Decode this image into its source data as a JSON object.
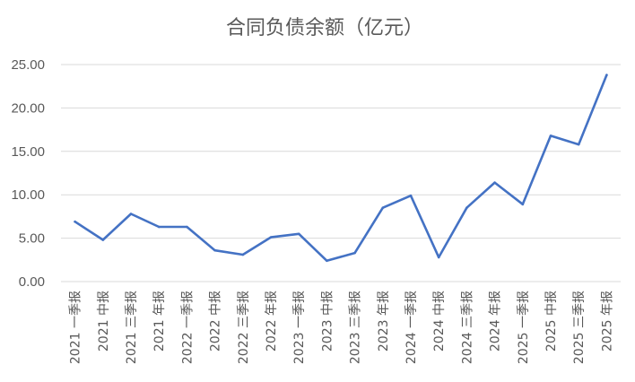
{
  "chart_data": {
    "type": "line",
    "title": "合同负债余额（亿元）",
    "xlabel": "",
    "ylabel": "",
    "categories": [
      "2021 一季报",
      "2021 中报",
      "2021 三季报",
      "2021 年报",
      "2022 一季报",
      "2022 中报",
      "2022 三季报",
      "2022 年报",
      "2023 一季报",
      "2023 中报",
      "2023 三季报",
      "2023 年报",
      "2024 一季报",
      "2024 中报",
      "2024 三季报",
      "2024 年报",
      "2025 一季报",
      "2025 中报",
      "2025 三季报",
      "2025 年报"
    ],
    "series": [
      {
        "values": [
          6.9,
          4.8,
          7.8,
          6.3,
          6.3,
          3.6,
          3.1,
          5.1,
          5.5,
          2.4,
          3.3,
          8.5,
          9.9,
          2.8,
          8.5,
          11.4,
          8.9,
          16.8,
          15.8,
          23.8
        ]
      }
    ],
    "ylim": [
      0,
      25
    ],
    "yticks": [
      "0.00",
      "5.00",
      "10.00",
      "15.00",
      "20.00",
      "25.00"
    ],
    "ytick_values": [
      0,
      5,
      10,
      15,
      20,
      25
    ],
    "grid": true,
    "legend": "none",
    "colors": {
      "line": "#4472c4",
      "grid": "#d9d9d9",
      "text": "#595959"
    }
  }
}
